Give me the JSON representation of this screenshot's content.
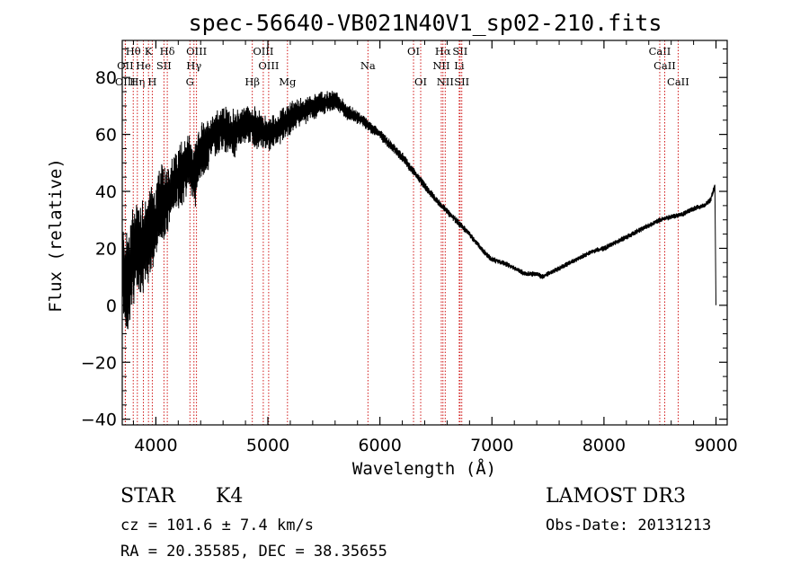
{
  "chart_data": {
    "type": "line",
    "title": "spec-56640-VB021N40V1_sp02-210.fits",
    "xlabel": "Wavelength (Å)",
    "ylabel": "Flux (relative)",
    "xlim": [
      3700,
      9100
    ],
    "ylim": [
      -42,
      93
    ],
    "x_ticks": [
      4000,
      5000,
      6000,
      7000,
      8000,
      9000
    ],
    "y_ticks": [
      -40,
      -20,
      0,
      20,
      40,
      60,
      80
    ],
    "x_tick_labels": [
      "4000",
      "5000",
      "6000",
      "7000",
      "8000",
      "9000"
    ],
    "y_tick_labels": [
      "−40",
      "−20",
      "0",
      "20",
      "40",
      "60",
      "80"
    ],
    "series": [
      {
        "name": "flux",
        "x": [
          3700,
          3750,
          3800,
          3850,
          3900,
          3950,
          4000,
          4050,
          4100,
          4150,
          4200,
          4250,
          4300,
          4350,
          4400,
          4450,
          4500,
          4600,
          4700,
          4800,
          4900,
          5000,
          5100,
          5200,
          5300,
          5400,
          5500,
          5600,
          5700,
          5800,
          5900,
          6000,
          6100,
          6200,
          6300,
          6400,
          6500,
          6600,
          6700,
          6800,
          6900,
          7000,
          7100,
          7200,
          7300,
          7400,
          7450,
          7500,
          7600,
          7700,
          7800,
          7900,
          8000,
          8100,
          8200,
          8300,
          8400,
          8500,
          8600,
          8700,
          8800,
          8900,
          8950,
          8990,
          9000
        ],
        "values": [
          12,
          8,
          18,
          20,
          22,
          25,
          30,
          35,
          38,
          40,
          45,
          48,
          50,
          45,
          55,
          55,
          60,
          62,
          60,
          64,
          62,
          60,
          62,
          66,
          68,
          70,
          71,
          72,
          68,
          66,
          63,
          60,
          56,
          52,
          47,
          42,
          37,
          33,
          29,
          25,
          20,
          16,
          15,
          13,
          11,
          11,
          10,
          11,
          13,
          15,
          17,
          19,
          20,
          22,
          24,
          26,
          28,
          30,
          31,
          32,
          34,
          35,
          37,
          42,
          0
        ],
        "noise": [
          14,
          16,
          16,
          16,
          15,
          14,
          13,
          12,
          11,
          10,
          10,
          10,
          9,
          9,
          8,
          8,
          7,
          7,
          7,
          6,
          6,
          5,
          5,
          5,
          4,
          4,
          3.5,
          3,
          2.5,
          2,
          1.8,
          1.6,
          1.5,
          1.4,
          1.3,
          1.2,
          1.1,
          1.0,
          1.0,
          0.9,
          0.9,
          0.9,
          0.8,
          0.8,
          0.8,
          0.8,
          0.8,
          0.8,
          0.8,
          0.8,
          0.8,
          0.8,
          0.8,
          0.8,
          0.8,
          0.8,
          0.8,
          0.8,
          0.8,
          0.8,
          0.8,
          0.8,
          1.0,
          1.2,
          0
        ]
      }
    ],
    "spectral_lines": [
      {
        "label": "Hθ",
        "wave": 3798,
        "row": 0
      },
      {
        "label": "OII",
        "wave": 3727,
        "row": 1
      },
      {
        "label": "OIII",
        "wave": 3727,
        "row": 2
      },
      {
        "label": "Hη",
        "wave": 3835,
        "row": 2
      },
      {
        "label": "He",
        "wave": 3889,
        "row": 1
      },
      {
        "label": "K",
        "wave": 3934,
        "row": 0
      },
      {
        "label": "H",
        "wave": 3968,
        "row": 2
      },
      {
        "label": "SII",
        "wave": 4072,
        "row": 1
      },
      {
        "label": "Hδ",
        "wave": 4102,
        "row": 0
      },
      {
        "label": "OIII",
        "wave": 4363,
        "row": 0
      },
      {
        "label": "Hγ",
        "wave": 4340,
        "row": 1
      },
      {
        "label": "G",
        "wave": 4304,
        "row": 2
      },
      {
        "label": "Hβ",
        "wave": 4861,
        "row": 2
      },
      {
        "label": "OIII",
        "wave": 4959,
        "row": 0
      },
      {
        "label": "OIII",
        "wave": 5007,
        "row": 1
      },
      {
        "label": "Mg",
        "wave": 5175,
        "row": 2
      },
      {
        "label": "Na",
        "wave": 5893,
        "row": 1
      },
      {
        "label": "OI",
        "wave": 6300,
        "row": 0
      },
      {
        "label": "OI",
        "wave": 6364,
        "row": 2
      },
      {
        "label": "Hα",
        "wave": 6563,
        "row": 0
      },
      {
        "label": "NII",
        "wave": 6548,
        "row": 1
      },
      {
        "label": "NII",
        "wave": 6583,
        "row": 2
      },
      {
        "label": "Li",
        "wave": 6708,
        "row": 1
      },
      {
        "label": "SII",
        "wave": 6716,
        "row": 0
      },
      {
        "label": "SII",
        "wave": 6731,
        "row": 2
      },
      {
        "label": "CaII",
        "wave": 8498,
        "row": 0
      },
      {
        "label": "CaII",
        "wave": 8542,
        "row": 1
      },
      {
        "label": "CaII",
        "wave": 8662,
        "row": 2
      }
    ]
  },
  "info": {
    "object_class": "STAR",
    "subclass": "K4",
    "survey": "LAMOST DR3",
    "redshift": "cz = 101.6 ± 7.4 km/s",
    "obs_date": "Obs-Date: 20131213",
    "coords": "RA =  20.35585, DEC =  38.35655"
  },
  "colors": {
    "axis": "#000000",
    "line": "#000000",
    "marker": "#cc0000"
  }
}
